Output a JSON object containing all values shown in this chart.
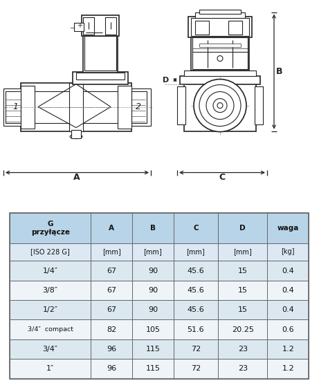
{
  "table_headers": [
    "G\nprzyłącze",
    "A",
    "B",
    "C",
    "D",
    "waga"
  ],
  "table_subheaders": [
    "[ISO 228 G]",
    "[mm]",
    "[mm]",
    "[mm]",
    "[mm]",
    "[kg]"
  ],
  "table_rows": [
    [
      "1/4″",
      "67",
      "90",
      "45.6",
      "15",
      "0.4"
    ],
    [
      "3/8″",
      "67",
      "90",
      "45.6",
      "15",
      "0.4"
    ],
    [
      "1/2″",
      "67",
      "90",
      "45.6",
      "15",
      "0.4"
    ],
    [
      "3/4″  compact",
      "82",
      "105",
      "51.6",
      "20.25",
      "0.6"
    ],
    [
      "3/4″",
      "96",
      "115",
      "72",
      "23",
      "1.2"
    ],
    [
      "1″",
      "96",
      "115",
      "72",
      "23",
      "1.2"
    ]
  ],
  "header_bg": "#b8d4e8",
  "subheader_bg": "#dce9f5",
  "odd_row_bg": "#dce8f0",
  "even_row_bg": "#eef4f8",
  "border_color": "#666666",
  "text_color": "#111111",
  "drawing_bg": "#ffffff",
  "line_color": "#222222",
  "dim_color": "#222222"
}
